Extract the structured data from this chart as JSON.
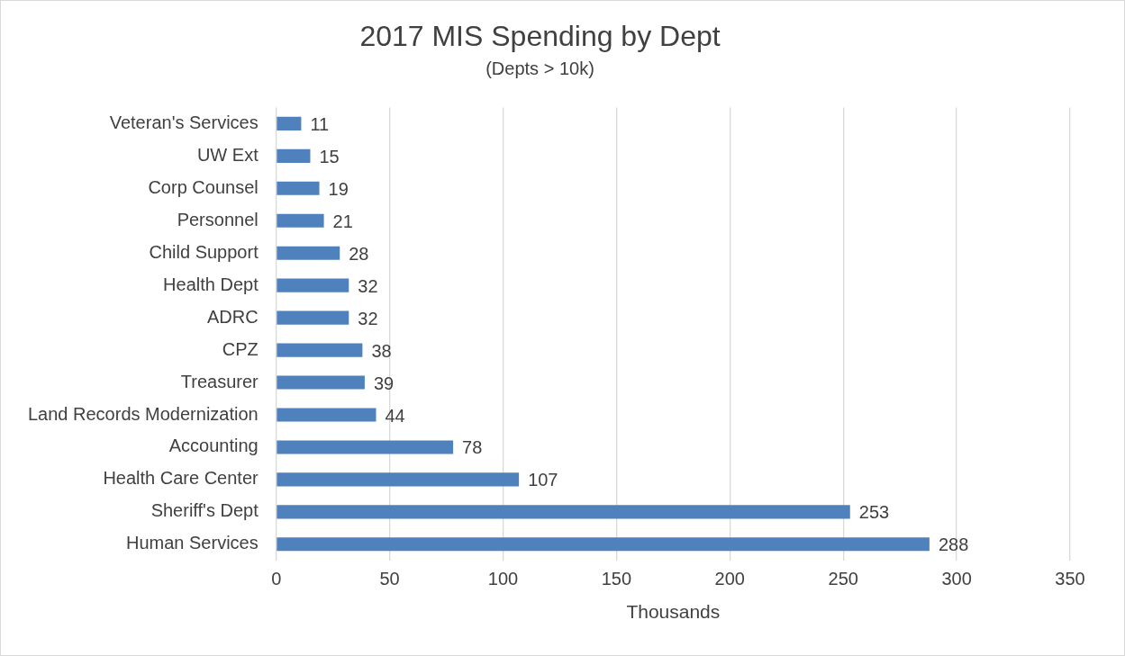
{
  "chart_data": {
    "type": "bar",
    "orientation": "horizontal",
    "title": "2017 MIS Spending by Dept",
    "subtitle": "(Depts > 10k)",
    "xlabel": "Thousands",
    "categories": [
      "Veteran's Services",
      "UW Ext",
      "Corp Counsel",
      "Personnel",
      "Child Support",
      "Health Dept",
      "ADRC",
      "CPZ",
      "Treasurer",
      "Land Records Modernization",
      "Accounting",
      "Health Care Center",
      "Sheriff's Dept",
      "Human Services"
    ],
    "values": [
      11,
      15,
      19,
      21,
      28,
      32,
      32,
      38,
      39,
      44,
      78,
      107,
      253,
      288
    ],
    "color": "#4f81bd",
    "xlim": [
      0,
      350
    ],
    "xticks": [
      0,
      50,
      100,
      150,
      200,
      250,
      300,
      350
    ],
    "grid": "x",
    "legend": false,
    "data_labels": true
  }
}
